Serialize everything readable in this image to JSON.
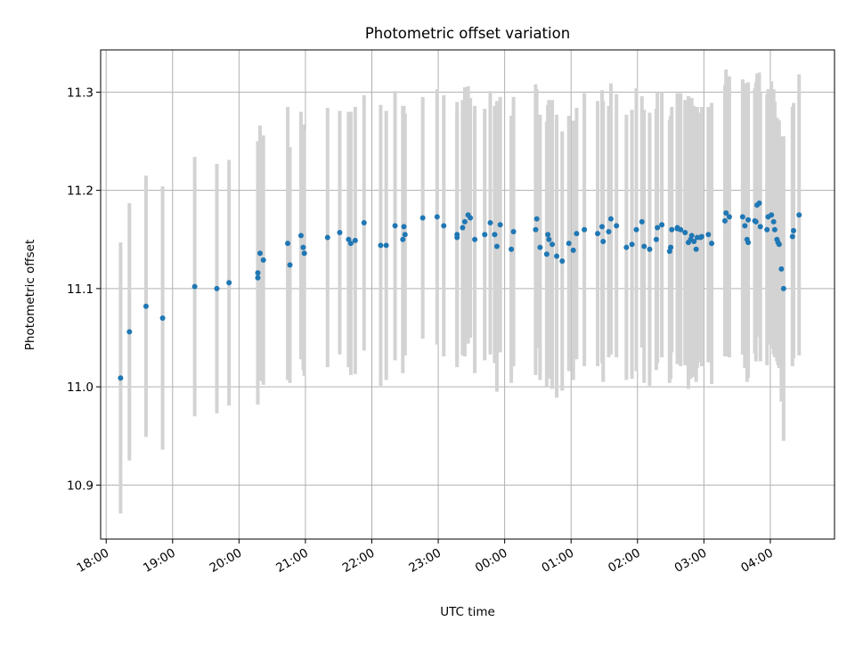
{
  "chart_data": {
    "type": "scatter",
    "title": "Photometric offset variation",
    "xlabel": "UTC time",
    "ylabel": "Photometric offset",
    "x_unit": "UTC time",
    "xlim": [
      "17:55",
      "04:58"
    ],
    "ylim": [
      10.845,
      11.343
    ],
    "x_tick_labels": [
      "18:00",
      "19:00",
      "20:00",
      "21:00",
      "22:00",
      "23:00",
      "00:00",
      "01:00",
      "02:00",
      "03:00",
      "04:00"
    ],
    "y_ticks": [
      10.9,
      11.0,
      11.1,
      11.2,
      11.3
    ],
    "y_tick_labels": [
      "10.9",
      "11.0",
      "11.1",
      "11.2",
      "11.3"
    ],
    "grid": true,
    "colors": {
      "points": "#1f77b4",
      "errorbars": "#d3d3d3",
      "grid": "#b0b0b0"
    },
    "series": [
      {
        "x": [
          "18:13",
          "18:21",
          "18:36",
          "18:51",
          "19:20",
          "19:40",
          "19:51",
          "20:17",
          "20:17",
          "20:19",
          "20:22",
          "20:44",
          "20:46",
          "20:56",
          "20:58",
          "20:59",
          "21:20",
          "21:31",
          "21:39",
          "21:41",
          "21:45",
          "21:53",
          "22:08",
          "22:13",
          "22:21",
          "22:28",
          "22:29",
          "22:30",
          "22:46",
          "22:59",
          "23:05",
          "23:17",
          "23:17",
          "23:22",
          "23:24",
          "23:27",
          "23:29",
          "23:33",
          "23:42",
          "23:47",
          "23:51",
          "23:53",
          "23:56",
          "24:06",
          "24:08",
          "24:28",
          "24:29",
          "24:32",
          "24:38",
          "24:39",
          "24:40",
          "24:43",
          "24:47",
          "24:52",
          "24:58",
          "25:02",
          "25:05",
          "25:12",
          "25:24",
          "25:28",
          "25:29",
          "25:34",
          "25:36",
          "25:41",
          "25:50",
          "25:55",
          "25:59",
          "26:04",
          "26:06",
          "26:11",
          "26:17",
          "26:18",
          "26:22",
          "26:29",
          "26:30",
          "26:31",
          "26:36",
          "26:36",
          "26:39",
          "26:43",
          "26:46",
          "26:48",
          "26:49",
          "26:51",
          "26:53",
          "26:54",
          "26:57",
          "26:58",
          "27:04",
          "27:07",
          "27:19",
          "27:20",
          "27:23",
          "27:35",
          "27:37",
          "27:39",
          "27:40",
          "27:40",
          "27:46",
          "27:47",
          "27:48",
          "27:50",
          "27:51",
          "27:57",
          "27:58",
          "28:01",
          "28:03",
          "28:04",
          "28:06",
          "28:07",
          "28:08",
          "28:10",
          "28:12",
          "28:20",
          "28:21",
          "28:26"
        ],
        "y": [
          11.009,
          11.056,
          11.082,
          11.07,
          11.102,
          11.1,
          11.106,
          11.111,
          11.116,
          11.136,
          11.129,
          11.146,
          11.124,
          11.154,
          11.142,
          11.136,
          11.152,
          11.157,
          11.15,
          11.146,
          11.149,
          11.167,
          11.144,
          11.144,
          11.164,
          11.15,
          11.163,
          11.155,
          11.172,
          11.173,
          11.164,
          11.155,
          11.152,
          11.162,
          11.168,
          11.175,
          11.172,
          11.15,
          11.155,
          11.167,
          11.155,
          11.143,
          11.165,
          11.14,
          11.158,
          11.16,
          11.171,
          11.142,
          11.135,
          11.155,
          11.15,
          11.145,
          11.133,
          11.128,
          11.146,
          11.139,
          11.156,
          11.16,
          11.156,
          11.163,
          11.148,
          11.158,
          11.171,
          11.164,
          11.142,
          11.145,
          11.16,
          11.168,
          11.143,
          11.14,
          11.15,
          11.162,
          11.165,
          11.138,
          11.142,
          11.16,
          11.161,
          11.162,
          11.16,
          11.157,
          11.147,
          11.15,
          11.154,
          11.148,
          11.14,
          11.152,
          11.152,
          11.153,
          11.155,
          11.146,
          11.169,
          11.177,
          11.173,
          11.173,
          11.164,
          11.15,
          11.147,
          11.17,
          11.169,
          11.168,
          11.185,
          11.187,
          11.163,
          11.16,
          11.173,
          11.175,
          11.168,
          11.16,
          11.15,
          11.147,
          11.145,
          11.12,
          11.1,
          11.153,
          11.159,
          11.175
        ],
        "err": [
          0.138,
          0.131,
          0.133,
          0.134,
          0.132,
          0.127,
          0.125,
          0.127,
          0.134,
          0.13,
          0.127,
          0.139,
          0.12,
          0.126,
          0.125,
          0.125,
          0.132,
          0.124,
          0.13,
          0.134,
          0.136,
          0.13,
          0.143,
          0.137,
          0.137,
          0.136,
          0.123,
          0.123,
          0.123,
          0.13,
          0.133,
          0.135,
          0.127,
          0.13,
          0.137,
          0.131,
          0.122,
          0.136,
          0.128,
          0.134,
          0.131,
          0.148,
          0.13,
          0.136,
          0.137,
          0.148,
          0.132,
          0.135,
          0.135,
          0.132,
          0.142,
          0.147,
          0.144,
          0.132,
          0.13,
          0.132,
          0.128,
          0.139,
          0.135,
          0.139,
          0.143,
          0.128,
          0.138,
          0.134,
          0.135,
          0.137,
          0.144,
          0.128,
          0.139,
          0.139,
          0.133,
          0.138,
          0.135,
          0.134,
          0.134,
          0.125,
          0.138,
          0.132,
          0.139,
          0.135,
          0.149,
          0.142,
          0.14,
          0.138,
          0.135,
          0.133,
          0.127,
          0.132,
          0.13,
          0.143,
          0.138,
          0.146,
          0.143,
          0.14,
          0.145,
          0.145,
          0.138,
          0.14,
          0.135,
          0.142,
          0.134,
          0.133,
          0.137,
          0.138,
          0.13,
          0.136,
          0.135,
          0.13,
          0.124,
          0.125,
          0.126,
          0.135,
          0.155,
          0.132,
          0.13,
          0.143
        ]
      }
    ]
  }
}
